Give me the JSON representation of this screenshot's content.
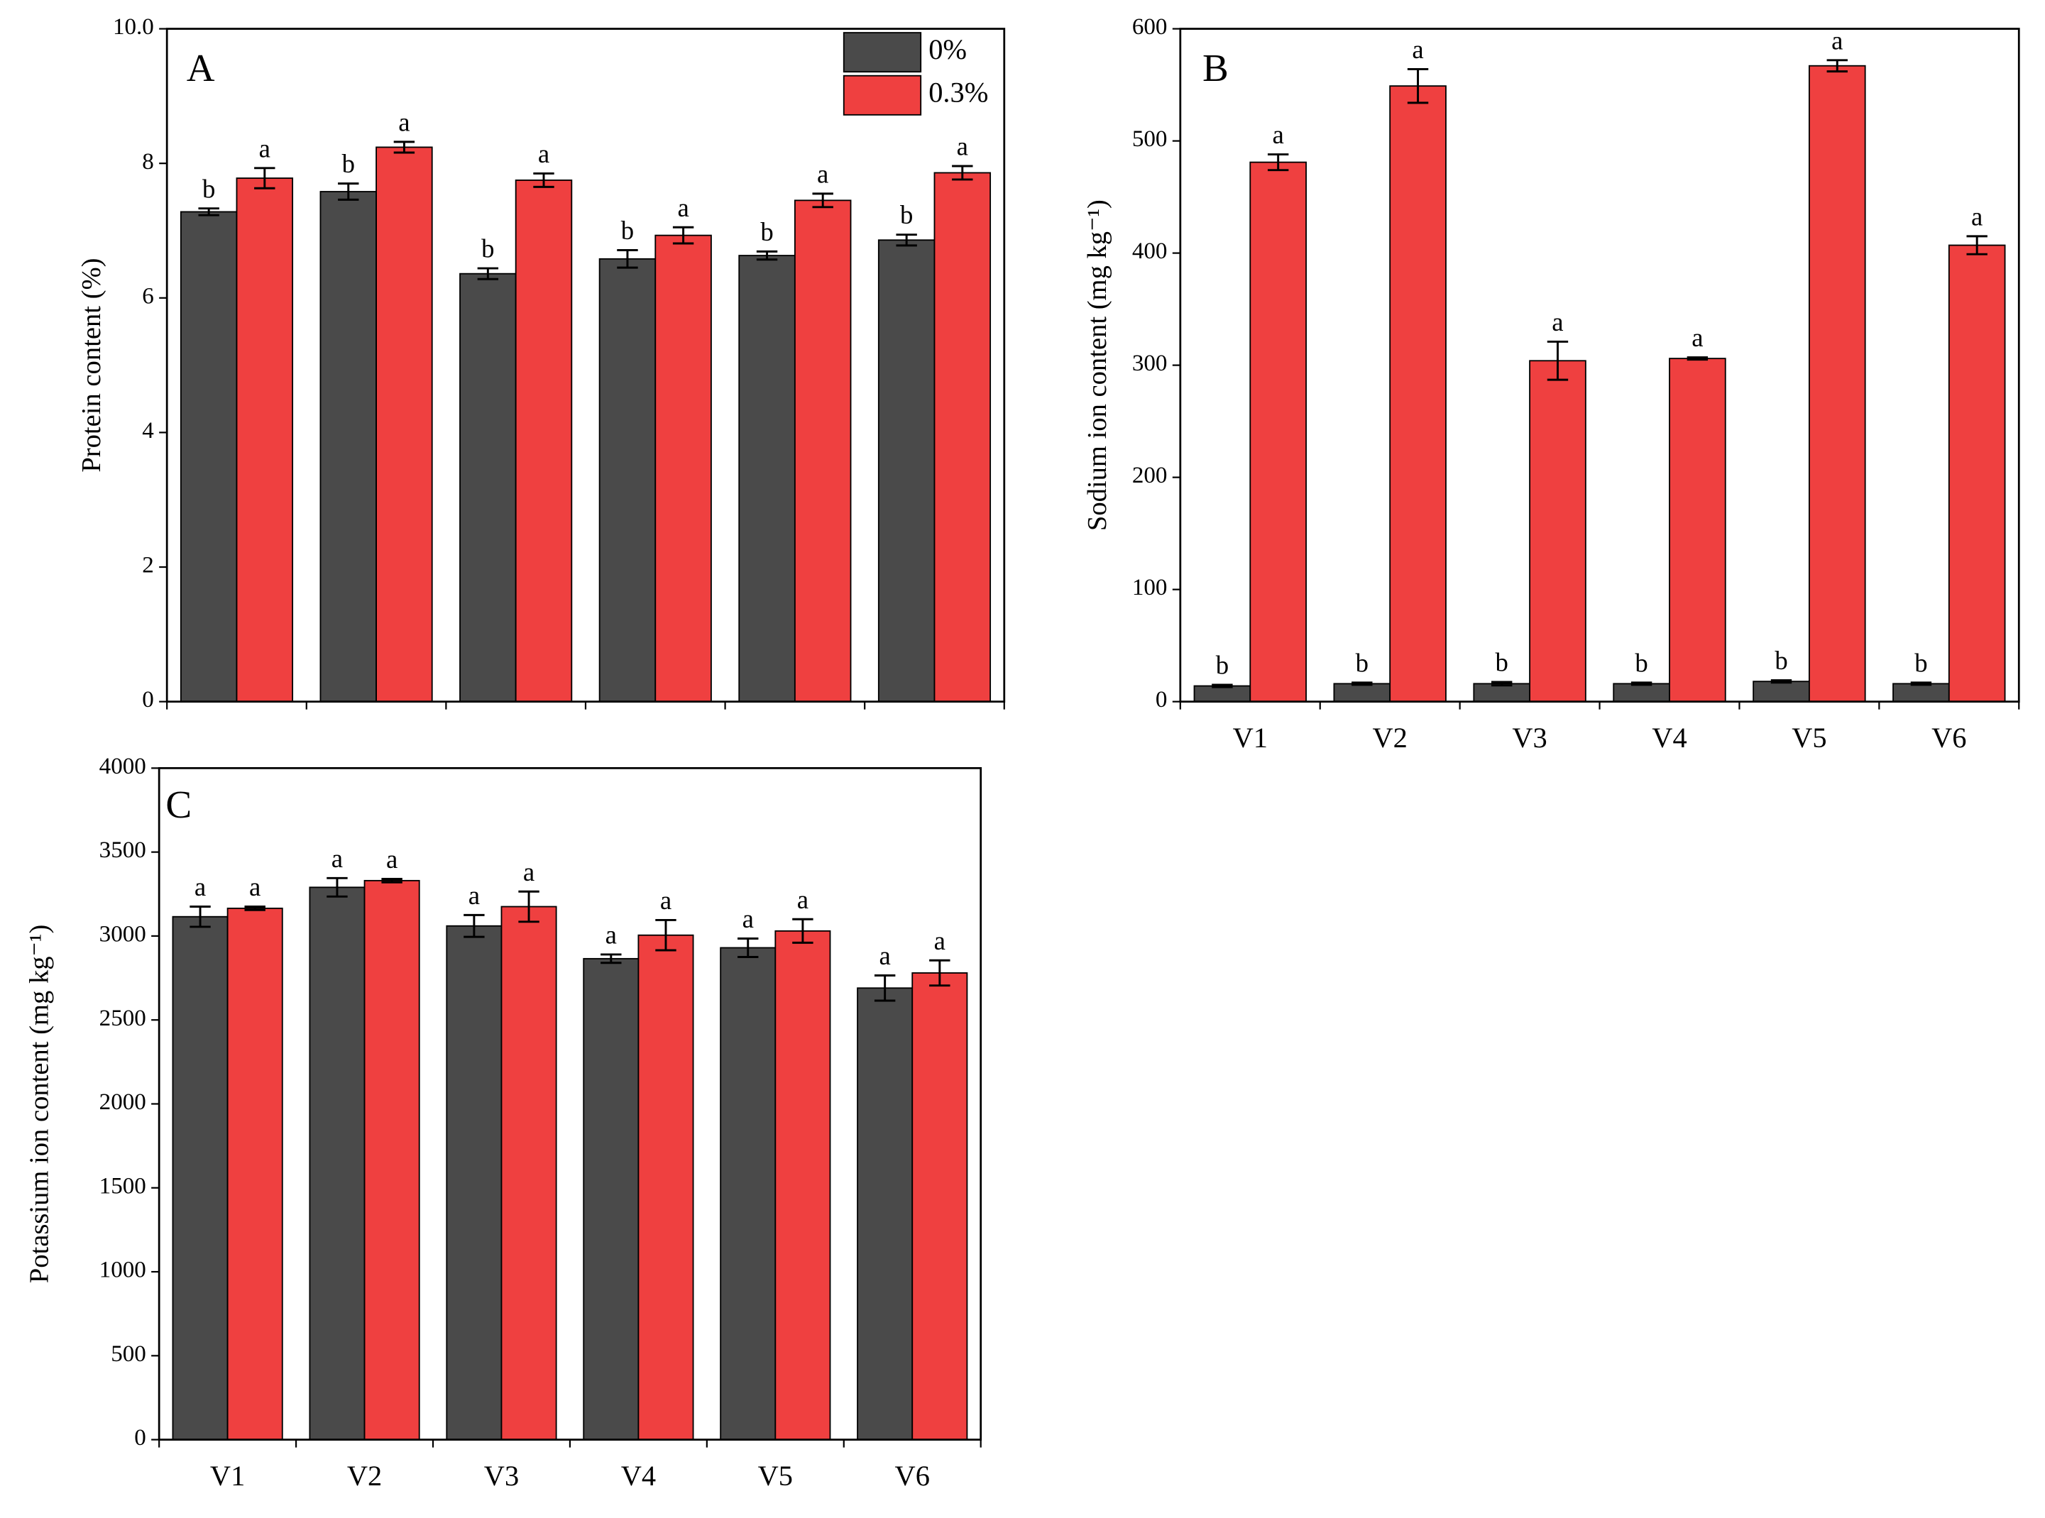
{
  "chart_data": [
    {
      "type": "bar",
      "annotation": "A",
      "ylabel": "Protein content (%)",
      "categories": [
        null,
        null,
        null,
        null,
        null,
        null
      ],
      "ylim": [
        0,
        10
      ],
      "yticks": [
        0,
        2,
        4,
        6,
        8,
        {
          "value": 10,
          "label": "10.0"
        }
      ],
      "legend": "upper right",
      "series": [
        {
          "name": "0%",
          "color": "#4a4a4a",
          "values": [
            7.28,
            7.58,
            6.36,
            6.58,
            6.63,
            6.86
          ],
          "errors": [
            0.05,
            0.12,
            0.08,
            0.13,
            0.06,
            0.08
          ],
          "letters": [
            "b",
            "b",
            "b",
            "b",
            "b",
            "b"
          ]
        },
        {
          "name": "0.3%",
          "color": "#ef4040",
          "values": [
            7.78,
            8.24,
            7.75,
            6.93,
            7.45,
            7.86
          ],
          "errors": [
            0.15,
            0.08,
            0.1,
            0.12,
            0.1,
            0.1
          ],
          "letters": [
            "a",
            "a",
            "a",
            "a",
            "a",
            "a"
          ]
        }
      ]
    },
    {
      "type": "bar",
      "annotation": "B",
      "ylabel": "Sodium ion content (mg kg⁻¹)",
      "categories": [
        "V1",
        "V2",
        "V3",
        "V4",
        "V5",
        "V6"
      ],
      "ylim": [
        0,
        600
      ],
      "yticks": [
        0,
        100,
        200,
        300,
        400,
        500,
        600
      ],
      "series": [
        {
          "color": "#4a4a4a",
          "values": [
            14,
            16,
            16,
            16,
            18,
            16
          ],
          "errors": [
            1,
            1,
            1.5,
            1,
            1,
            1
          ],
          "letters": [
            "b",
            "b",
            "b",
            "b",
            "b",
            "b"
          ]
        },
        {
          "color": "#ef4040",
          "values": [
            481,
            549,
            304,
            306,
            567,
            407
          ],
          "errors": [
            7,
            15,
            17,
            1,
            5,
            8
          ],
          "letters": [
            "a",
            "a",
            "a",
            "a",
            "a",
            "a"
          ]
        }
      ]
    },
    {
      "type": "bar",
      "annotation": "C",
      "ylabel": "Potassium ion content (mg kg⁻¹)",
      "categories": [
        "V1",
        "V2",
        "V3",
        "V4",
        "V5",
        "V6"
      ],
      "ylim": [
        0,
        4000
      ],
      "yticks": [
        0,
        500,
        1000,
        1500,
        2000,
        2500,
        3000,
        3500,
        4000
      ],
      "series": [
        {
          "color": "#4a4a4a",
          "values": [
            3115,
            3290,
            3060,
            2865,
            2930,
            2690
          ],
          "errors": [
            60,
            55,
            65,
            25,
            55,
            75
          ],
          "letters": [
            "a",
            "a",
            "a",
            "a",
            "a",
            "a"
          ]
        },
        {
          "color": "#ef4040",
          "values": [
            3165,
            3330,
            3175,
            3005,
            3030,
            2780
          ],
          "errors": [
            10,
            10,
            90,
            90,
            70,
            75
          ],
          "letters": [
            "a",
            "a",
            "a",
            "a",
            "a",
            "a"
          ]
        }
      ]
    }
  ]
}
